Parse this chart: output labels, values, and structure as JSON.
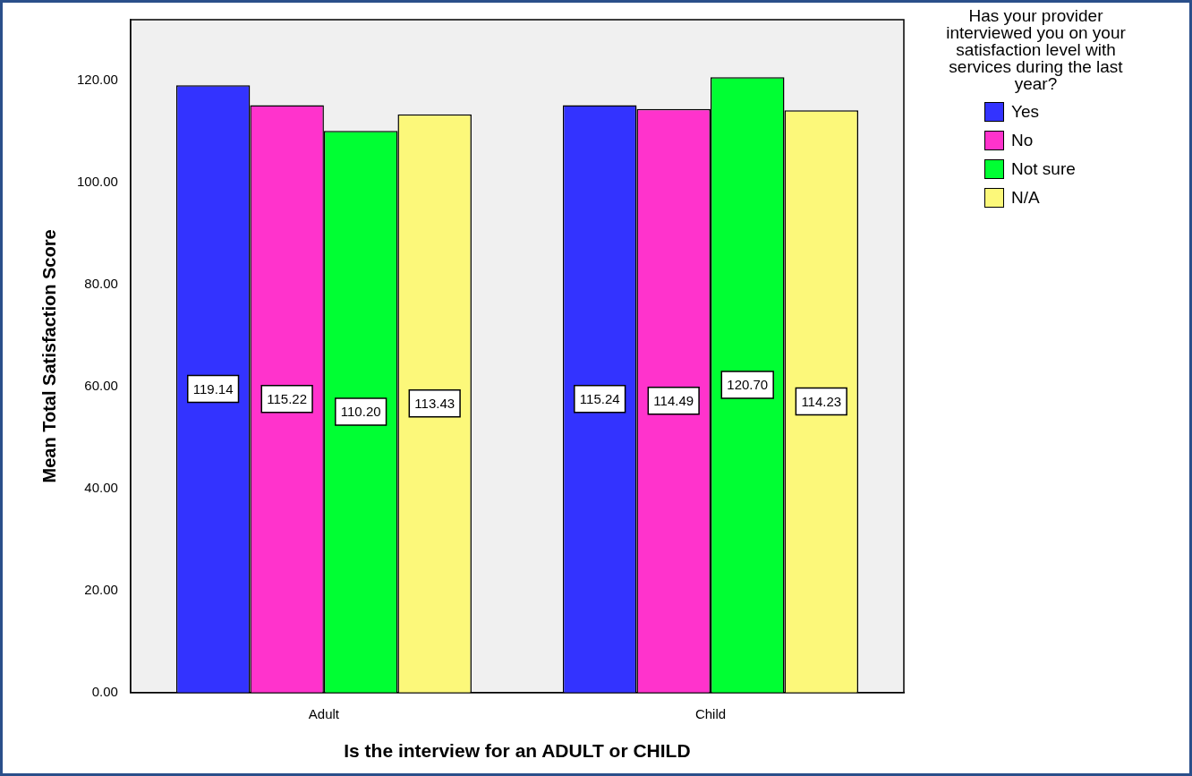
{
  "chart_data": {
    "type": "bar",
    "xlabel": "Is the interview for an ADULT or CHILD",
    "ylabel": "Mean Total Satisfaction Score",
    "legend_title": "Has your provider interviewed you on your satisfaction level with services during the last year?",
    "categories": [
      "Adult",
      "Child"
    ],
    "series": [
      {
        "name": "Yes",
        "color": "#3333ff",
        "values": [
          119.14,
          115.24
        ],
        "value_labels": [
          "119.14",
          "115.24"
        ]
      },
      {
        "name": "No",
        "color": "#ff33cc",
        "values": [
          115.22,
          114.49
        ],
        "value_labels": [
          "115.22",
          "114.49"
        ]
      },
      {
        "name": "Not sure",
        "color": "#00ff33",
        "values": [
          110.2,
          120.7
        ],
        "value_labels": [
          "110.20",
          "120.70"
        ]
      },
      {
        "name": "N/A",
        "color": "#fcf87a",
        "values": [
          113.43,
          114.23
        ],
        "value_labels": [
          "113.43",
          "114.23"
        ]
      }
    ],
    "ylim": [
      0,
      132
    ],
    "yticks": [
      {
        "value": 0,
        "label": "0.00"
      },
      {
        "value": 20,
        "label": "20.00"
      },
      {
        "value": 40,
        "label": "40.00"
      },
      {
        "value": 60,
        "label": "60.00"
      },
      {
        "value": 80,
        "label": "80.00"
      },
      {
        "value": 100,
        "label": "100.00"
      },
      {
        "value": 120,
        "label": "120.00"
      }
    ],
    "grid": false,
    "legend": "top right"
  }
}
